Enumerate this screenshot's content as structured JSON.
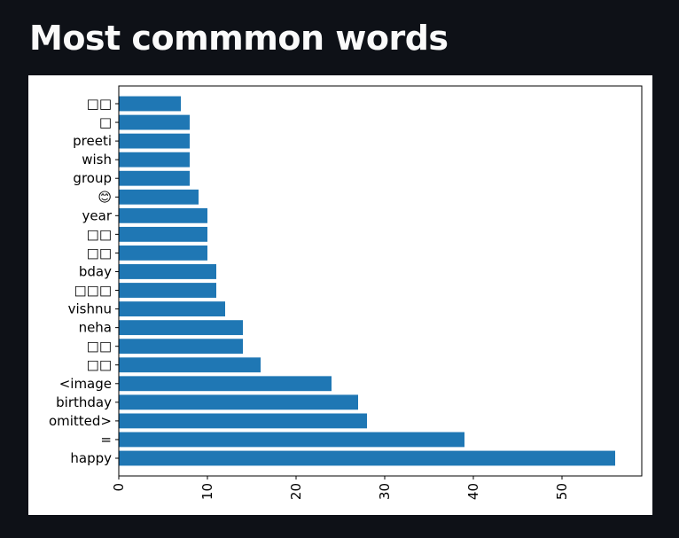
{
  "page": {
    "title": "Most commmon words"
  },
  "colors": {
    "page_background": "#0e1117",
    "title_text": "#fafafa",
    "figure_background": "#ffffff",
    "bar": "#1f77b4"
  },
  "chart_data": {
    "type": "bar",
    "orientation": "horizontal",
    "title": "",
    "xlabel": "",
    "ylabel": "",
    "categories": [
      "happy",
      "=",
      "omitted>",
      "birthday",
      "<image",
      "□□",
      "□□",
      "neha",
      "vishnu",
      "□□□",
      "bday",
      "□□",
      "□□",
      "year",
      "😊",
      "group",
      "wish",
      "preeti",
      "□",
      "□□"
    ],
    "values": [
      56,
      39,
      28,
      27,
      24,
      16,
      14,
      14,
      12,
      11,
      11,
      10,
      10,
      10,
      9,
      8,
      8,
      8,
      8,
      7
    ],
    "xlim": [
      0,
      59
    ],
    "xticks": [
      0,
      10,
      20,
      30,
      40,
      50
    ],
    "xtick_rotation": 90,
    "grid": false,
    "legend": false
  }
}
